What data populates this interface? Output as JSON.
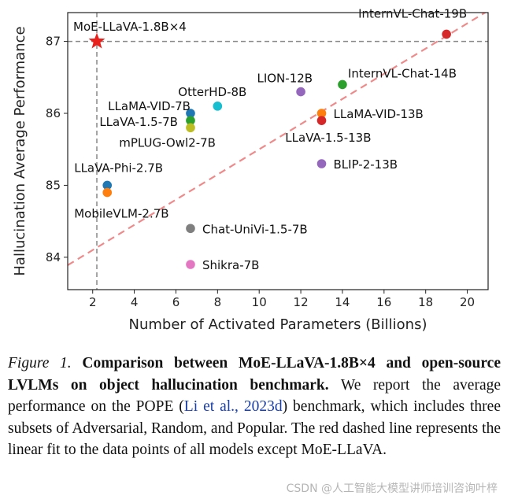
{
  "chart_data": {
    "type": "scatter",
    "xlabel": "Number of Activated Parameters (Billions)",
    "ylabel": "Hallucination Average Performance",
    "xlim": [
      0.8,
      21.0
    ],
    "ylim": [
      83.55,
      87.4
    ],
    "xticks": [
      2,
      4,
      6,
      8,
      10,
      12,
      14,
      16,
      18,
      20
    ],
    "yticks": [
      84,
      85,
      86,
      87
    ],
    "reference_lines": {
      "x": 2.2,
      "y": 87.0
    },
    "fit_line": {
      "slope": 0.175,
      "intercept": 83.75,
      "color": "#f08a8a"
    },
    "highlight": {
      "name": "MoE-LLaVA-1.8B×4",
      "x": 2.2,
      "y": 87.0,
      "color": "#e8211d",
      "marker": "star"
    },
    "points": [
      {
        "name": "InternVL-Chat-19B",
        "x": 19.0,
        "y": 87.1,
        "color": "#d62728"
      },
      {
        "name": "InternVL-Chat-14B",
        "x": 14.0,
        "y": 86.4,
        "color": "#2ca02c"
      },
      {
        "name": "LION-12B",
        "x": 12.0,
        "y": 86.3,
        "color": "#9467bd"
      },
      {
        "name": "OtterHD-8B",
        "x": 8.0,
        "y": 86.1,
        "color": "#17becf"
      },
      {
        "name": "LLaMA-VID-7B",
        "x": 6.7,
        "y": 86.0,
        "color": "#1f77b4"
      },
      {
        "name": "LLaVA-1.5-7B",
        "x": 6.7,
        "y": 85.9,
        "color": "#2ca02c"
      },
      {
        "name": "mPLUG-Owl2-7B",
        "x": 6.7,
        "y": 85.8,
        "color": "#bcbd22"
      },
      {
        "name": "LLaMA-VID-13B",
        "x": 13.0,
        "y": 86.0,
        "color": "#ff7f0e"
      },
      {
        "name": "LLaVA-1.5-13B",
        "x": 13.0,
        "y": 85.9,
        "color": "#d62728"
      },
      {
        "name": "BLIP-2-13B",
        "x": 13.0,
        "y": 85.3,
        "color": "#9467bd"
      },
      {
        "name": "LLaVA-Phi-2.7B",
        "x": 2.7,
        "y": 85.0,
        "color": "#1f77b4"
      },
      {
        "name": "MobileVLM-2.7B",
        "x": 2.7,
        "y": 84.9,
        "color": "#ff7f0e"
      },
      {
        "name": "Chat-UniVi-1.5-7B",
        "x": 6.7,
        "y": 84.4,
        "color": "#7f7f7f"
      },
      {
        "name": "Shikra-7B",
        "x": 6.7,
        "y": 83.9,
        "color": "#e377c2"
      }
    ]
  },
  "caption": {
    "figure_number": "Figure 1.",
    "bold_title": "Comparison between MoE-LLaVA-1.8B×4 and open-source LVLMs on object hallucination benchmark.",
    "body_before_cite": "We report the average performance on the POPE (",
    "citation": "Li et al., 2023d",
    "body_after_cite": ") benchmark, which includes three subsets of Adversarial, Random, and Popular. The red dashed line represents the linear fit to the data points of all models except MoE-LLaVA."
  },
  "watermark": "CSDN @人工智能大模型讲师培训咨询叶梓"
}
